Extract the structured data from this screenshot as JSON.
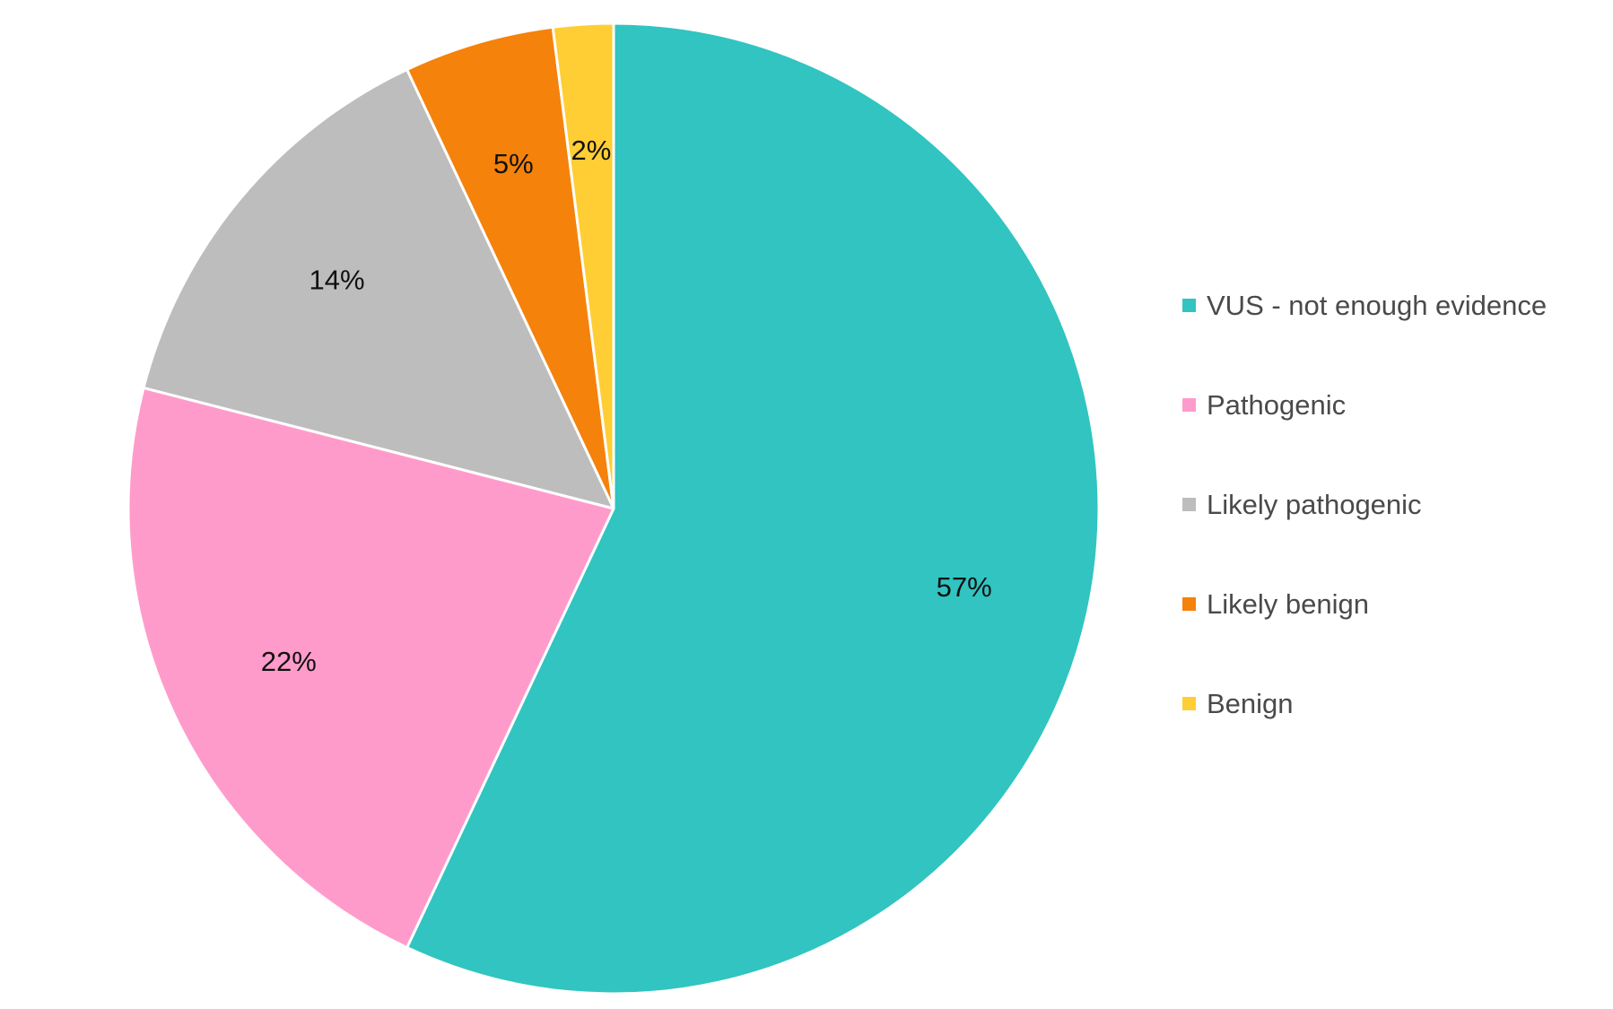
{
  "chart_data": {
    "type": "pie",
    "title": "",
    "start_angle_deg": 0,
    "direction": "clockwise",
    "legend_position": "right",
    "slices": [
      {
        "label": "VUS - not enough evidence",
        "value": 57,
        "display": "57%",
        "color": "#31C4C1"
      },
      {
        "label": "Pathogenic",
        "value": 22,
        "display": "22%",
        "color": "#FF9BCB"
      },
      {
        "label": "Likely pathogenic",
        "value": 14,
        "display": "14%",
        "color": "#BDBDBD"
      },
      {
        "label": "Likely benign",
        "value": 5,
        "display": "5%",
        "color": "#F5820B"
      },
      {
        "label": "Benign",
        "value": 2,
        "display": "2%",
        "color": "#FFCE35"
      }
    ]
  }
}
